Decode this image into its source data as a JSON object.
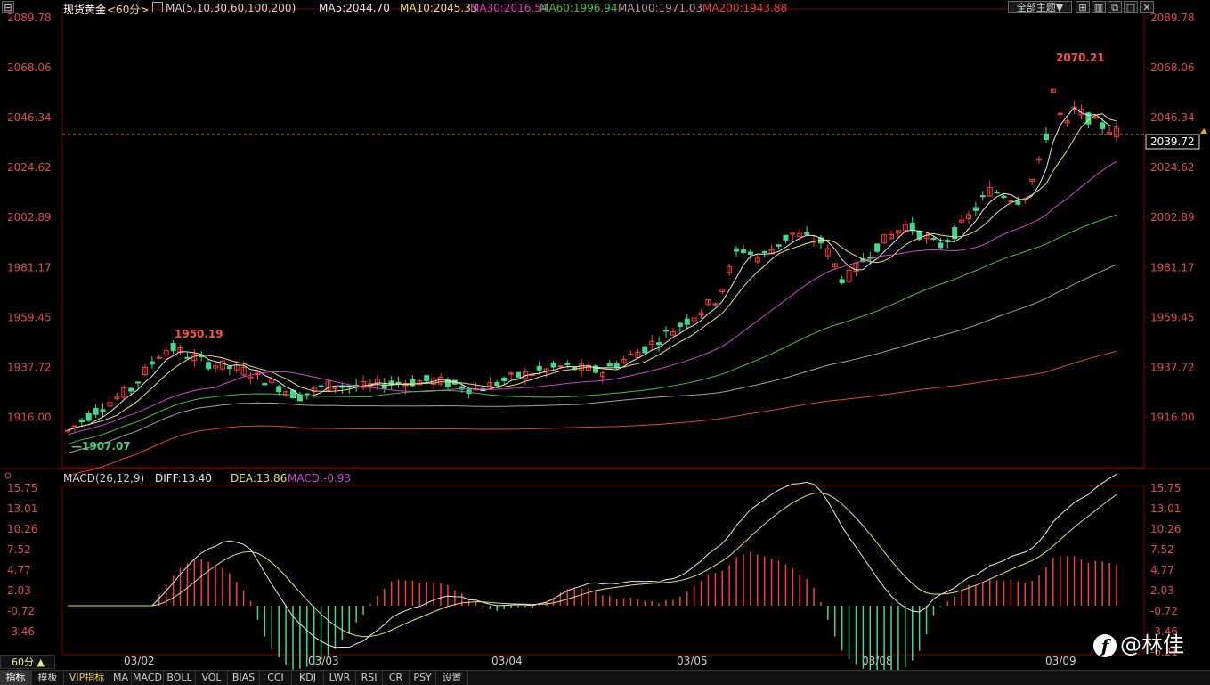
{
  "header": {
    "symbol": "现货黄金",
    "period": "<60分>",
    "ma_legend": [
      {
        "text": "MA(5,10,30,60,100,200)",
        "color": "#d0d0d0"
      },
      {
        "text": "MA5:2044.70",
        "color": "#e8e8e8"
      },
      {
        "text": "MA10:2045.33",
        "color": "#e6e06a"
      },
      {
        "text": "MA30:2016.54",
        "color": "#d040d0"
      },
      {
        "text": "MA60:1996.94",
        "color": "#40c040"
      },
      {
        "text": "MA100:1971.03",
        "color": "#a0a0a0"
      },
      {
        "text": "MA200:1943.88",
        "color": "#e04040"
      }
    ],
    "theme_button": "全部主题▼"
  },
  "price_axis": {
    "labels": [
      "2089.78",
      "2068.06",
      "2046.34",
      "2024.62",
      "2002.89",
      "1981.17",
      "1959.45",
      "1937.72",
      "1916.00"
    ],
    "current": "2039.72"
  },
  "annotations": {
    "high": "2070.21",
    "low": "1907.07",
    "local_high": "1950.19"
  },
  "macd": {
    "legend": [
      {
        "text": "MACD(26,12,9)",
        "color": "#d0d0d0"
      },
      {
        "text": "DIFF:13.40",
        "color": "#e8e8e8"
      },
      {
        "text": "DEA:13.86",
        "color": "#e6e06a"
      },
      {
        "text": "MACD:-0.93",
        "color": "#d040d0"
      }
    ],
    "axis_labels": [
      "15.75",
      "13.01",
      "10.26",
      "7.52",
      "4.77",
      "2.03",
      "-0.72",
      "-3.46",
      "-6.21"
    ]
  },
  "dates": [
    "03/02",
    "03/03",
    "03/04",
    "03/05",
    "03/08",
    "03/09"
  ],
  "period_selector": "60分 ▲",
  "bottom_tabs": [
    "指标",
    "模板",
    "VIP指标",
    "MA",
    "MACD",
    "BOLL",
    "VOL",
    "BIAS",
    "CCI",
    "KDJ",
    "LWR",
    "RSI",
    "CR",
    "PSY",
    "设置"
  ],
  "watermark": "@林佳",
  "colors": {
    "up": "#ff3a3a",
    "down": "#3cdc8c",
    "grid": "#7a0000",
    "text": "#c8c8c8",
    "price_text": "#e04848"
  }
}
